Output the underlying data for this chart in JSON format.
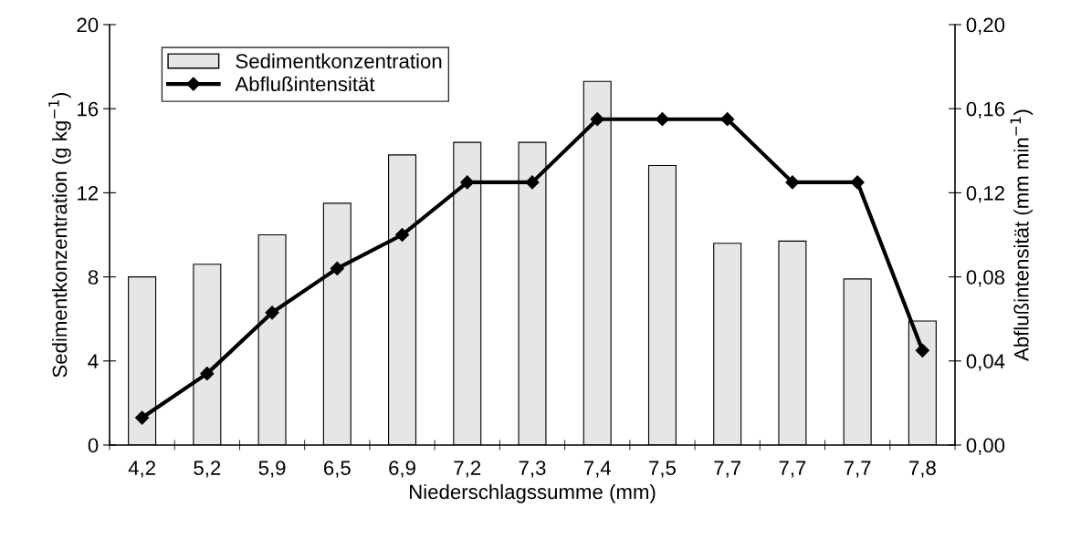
{
  "chart_data": {
    "type": "bar",
    "xlabel": "Niederschlagssumme (mm)",
    "ylabel": "Sedimentkonzentration (g kg$^{−1}$)",
    "y2label": "Abflußintensität (mm min$^{−1}$)",
    "categories": [
      "4,2",
      "5,2",
      "5,9",
      "6,5",
      "6,9",
      "7,2",
      "7,3",
      "7,4",
      "7,5",
      "7,7",
      "7,7",
      "7,7",
      "7,8"
    ],
    "series": [
      {
        "name": "Sedimentkonzentration",
        "color": "#e6e6e6",
        "values": [
          8.0,
          8.6,
          10.0,
          11.5,
          13.8,
          14.4,
          14.4,
          17.3,
          13.3,
          9.6,
          9.7,
          7.9,
          5.9
        ]
      },
      {
        "name": "Abflußintensität",
        "type": "line",
        "axis": "y2",
        "color": "#000000",
        "marker": "diamond",
        "values": [
          0.013,
          0.034,
          0.063,
          0.084,
          0.1,
          0.125,
          0.125,
          0.155,
          0.155,
          0.155,
          0.125,
          0.125,
          0.045
        ]
      }
    ],
    "ylim": [
      0,
      20
    ],
    "yticks": [
      0,
      4,
      8,
      12,
      16,
      20
    ],
    "y2lim": [
      0,
      0.2
    ],
    "y2ticks": [
      {
        "value": 0,
        "label": "0,00"
      },
      {
        "value": 0.04,
        "label": "0,04"
      },
      {
        "value": 0.08,
        "label": "0,08"
      },
      {
        "value": 0.12,
        "label": "0,12"
      },
      {
        "value": 0.16,
        "label": "0,16"
      },
      {
        "value": 0.2,
        "label": "0,20"
      }
    ],
    "grid": false,
    "legend": "top left"
  }
}
